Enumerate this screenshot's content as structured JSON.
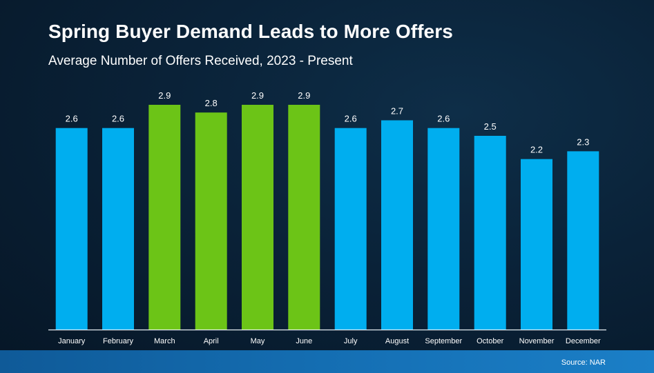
{
  "title": "Spring Buyer Demand Leads to More Offers",
  "subtitle": "Average Number of Offers Received, 2023 - Present",
  "source": "Source: NAR",
  "colors": {
    "default_bar": "#00aeef",
    "spring_bar": "#6cc417",
    "axis": "#e8eef3",
    "text": "#ffffff"
  },
  "chart_data": {
    "type": "bar",
    "title": "Spring Buyer Demand Leads to More Offers",
    "subtitle": "Average Number of Offers Received, 2023 - Present",
    "xlabel": "",
    "ylabel": "",
    "ylim": [
      0,
      2.9
    ],
    "grid": false,
    "legend": "none",
    "categories": [
      "January",
      "February",
      "March",
      "April",
      "May",
      "June",
      "July",
      "August",
      "September",
      "October",
      "November",
      "December"
    ],
    "values": [
      2.6,
      2.6,
      2.9,
      2.8,
      2.9,
      2.9,
      2.6,
      2.7,
      2.6,
      2.5,
      2.2,
      2.3
    ],
    "data_labels": [
      "2.6",
      "2.6",
      "2.9",
      "2.8",
      "2.9",
      "2.9",
      "2.6",
      "2.7",
      "2.6",
      "2.5",
      "2.2",
      "2.3"
    ],
    "highlighted": [
      "March",
      "April",
      "May",
      "June"
    ]
  }
}
